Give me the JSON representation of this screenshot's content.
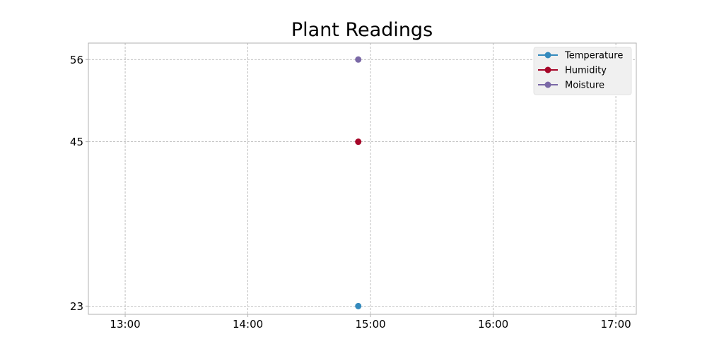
{
  "chart_data": {
    "type": "line",
    "title": "Plant Readings",
    "xlabel": "",
    "ylabel": "",
    "x_ticks": [
      "13:00",
      "14:00",
      "15:00",
      "16:00",
      "17:00"
    ],
    "x_range": [
      "12:42",
      "17:10"
    ],
    "y_ticks": [
      23,
      45,
      56
    ],
    "y_range": [
      21.9,
      58.2
    ],
    "grid": true,
    "legend_position": "top-right",
    "series": [
      {
        "name": "Temperature",
        "color": "#348abd",
        "points": [
          {
            "x": "14:54",
            "y": 23
          }
        ]
      },
      {
        "name": "Humidity",
        "color": "#a60628",
        "points": [
          {
            "x": "14:54",
            "y": 45
          }
        ]
      },
      {
        "name": "Moisture",
        "color": "#7a68a6",
        "points": [
          {
            "x": "14:54",
            "y": 56
          }
        ]
      }
    ]
  }
}
